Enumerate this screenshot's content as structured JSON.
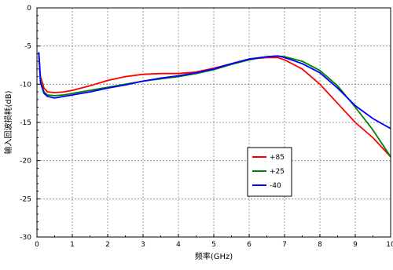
{
  "chart_data": {
    "type": "line",
    "title": "",
    "xlabel": "频率(GHz)",
    "ylabel": "输入回波损耗(dB)",
    "xlim": [
      0,
      10
    ],
    "ylim": [
      -30,
      0
    ],
    "xticks": [
      "0",
      "1",
      "2",
      "3",
      "4",
      "5",
      "6",
      "7",
      "8",
      "9",
      "10"
    ],
    "yticks": [
      "0",
      "-5",
      "-10",
      "-15",
      "-20",
      "-25",
      "-30"
    ],
    "grid": true,
    "legend_position": "lower-right",
    "series": [
      {
        "name": "+85",
        "color": "#ff0000",
        "x": [
          0.05,
          0.1,
          0.2,
          0.3,
          0.5,
          0.75,
          1,
          1.5,
          2,
          2.5,
          3,
          3.5,
          4,
          4.5,
          5,
          5.5,
          6,
          6.5,
          6.8,
          7,
          7.5,
          8,
          8.5,
          9,
          9.5,
          10
        ],
        "y": [
          -5.8,
          -9.0,
          -10.5,
          -11.0,
          -11.1,
          -11.0,
          -10.8,
          -10.2,
          -9.5,
          -9.0,
          -8.7,
          -8.6,
          -8.6,
          -8.4,
          -7.9,
          -7.3,
          -6.7,
          -6.5,
          -6.5,
          -6.8,
          -8.0,
          -10.0,
          -12.5,
          -15.0,
          -17.0,
          -19.5
        ]
      },
      {
        "name": "+25",
        "color": "#008000",
        "x": [
          0.05,
          0.1,
          0.2,
          0.3,
          0.5,
          0.75,
          1,
          1.5,
          2,
          2.5,
          3,
          3.5,
          4,
          4.5,
          5,
          5.5,
          6,
          6.5,
          6.8,
          7,
          7.5,
          8,
          8.5,
          9,
          9.5,
          10
        ],
        "y": [
          -5.8,
          -9.5,
          -11.0,
          -11.4,
          -11.5,
          -11.4,
          -11.2,
          -10.8,
          -10.4,
          -10.0,
          -9.6,
          -9.3,
          -9.0,
          -8.6,
          -8.1,
          -7.4,
          -6.8,
          -6.4,
          -6.3,
          -6.4,
          -7.0,
          -8.2,
          -10.2,
          -13.0,
          -16.0,
          -19.5
        ]
      },
      {
        "name": "-40",
        "color": "#0000ff",
        "x": [
          0.05,
          0.1,
          0.2,
          0.3,
          0.5,
          0.75,
          1,
          1.5,
          2,
          2.5,
          3,
          3.5,
          4,
          4.5,
          5,
          5.5,
          6,
          6.5,
          6.8,
          7,
          7.5,
          8,
          8.5,
          9,
          9.5,
          10
        ],
        "y": [
          -5.8,
          -9.8,
          -11.2,
          -11.6,
          -11.8,
          -11.6,
          -11.4,
          -11.0,
          -10.5,
          -10.1,
          -9.6,
          -9.2,
          -8.9,
          -8.5,
          -8.0,
          -7.3,
          -6.7,
          -6.4,
          -6.3,
          -6.5,
          -7.3,
          -8.5,
          -10.5,
          -12.8,
          -14.5,
          -15.8
        ]
      }
    ]
  }
}
